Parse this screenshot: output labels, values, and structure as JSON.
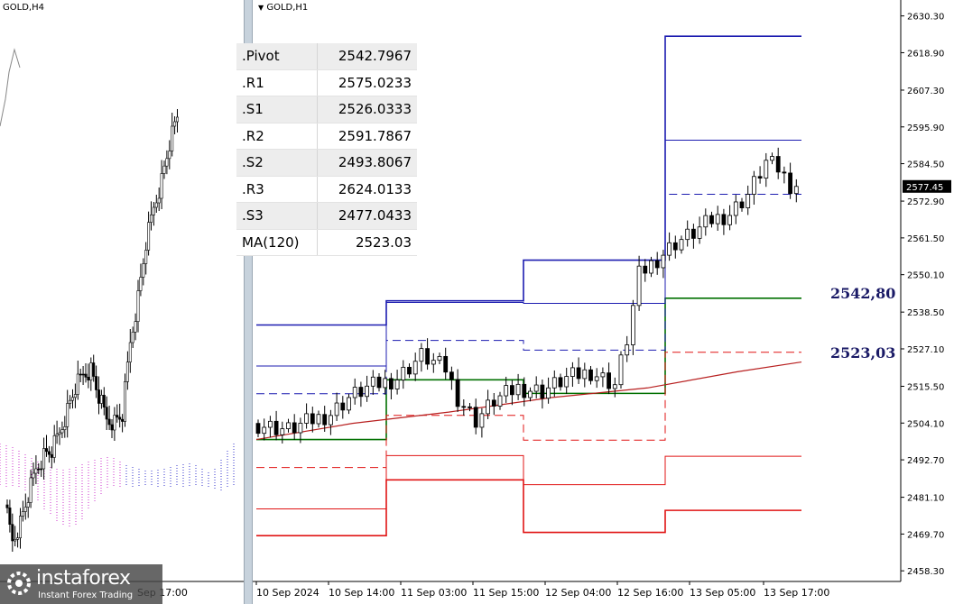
{
  "left_chart": {
    "title": "GOLD,H4",
    "time_label": "Sep 17:00"
  },
  "right_chart": {
    "title": "GOLD,H1",
    "price_tag": "2577.45"
  },
  "pivot_table": {
    "rows": [
      {
        "label": ".Pivot",
        "value": "2542.7967"
      },
      {
        "label": ".R1",
        "value": "2575.0233"
      },
      {
        "label": ".S1",
        "value": "2526.0333"
      },
      {
        "label": ".R2",
        "value": "2591.7867"
      },
      {
        "label": ".S2",
        "value": "2493.8067"
      },
      {
        "label": ".R3",
        "value": "2624.0133"
      },
      {
        "label": ".S3",
        "value": "2477.0433"
      },
      {
        "label": "MA(120)",
        "value": "2523.03"
      }
    ]
  },
  "annotations": {
    "pivot_level": "2542,80",
    "ma_level": "2523,03"
  },
  "logo": {
    "name": "instaforex",
    "tagline": "Instant Forex Trading"
  },
  "colors": {
    "pivot": "#007000",
    "resistance": "#1c1cb0",
    "support": "#e01414",
    "ma": "#b82020",
    "candle": "#000000"
  },
  "chart_data": [
    {
      "type": "line",
      "title": "GOLD,H4",
      "note": "candlestick with Ichimoku cloud",
      "x_tick_labels": [
        "Sep 17:00"
      ],
      "series": []
    },
    {
      "type": "line",
      "title": "GOLD,H1",
      "y_ticks": [
        2630.3,
        2618.9,
        2607.3,
        2595.9,
        2584.5,
        2572.9,
        2561.5,
        2550.1,
        2538.5,
        2527.1,
        2515.5,
        2504.1,
        2492.7,
        2481.1,
        2469.7,
        2458.3
      ],
      "ylim": [
        2455.0,
        2633.0
      ],
      "x_tick_labels": [
        "10 Sep 2024",
        "10 Sep 14:00",
        "11 Sep 03:00",
        "11 Sep 15:00",
        "12 Sep 04:00",
        "12 Sep 16:00",
        "13 Sep 05:00",
        "13 Sep 17:00"
      ],
      "current_price": 2577.45,
      "levels": [
        {
          "period": 1,
          "pivot": 2499.0,
          "r1": 2513.2,
          "s1": 2490.3,
          "r2": 2521.8,
          "s2": 2477.5,
          "r3": 2534.5,
          "s3": 2469.2
        },
        {
          "period": 2,
          "pivot": 2517.5,
          "r1": 2529.7,
          "s1": 2506.5,
          "r2": 2541.5,
          "s2": 2494.0,
          "r3": 2542.0,
          "s3": 2486.5
        },
        {
          "period": 3,
          "pivot": 2513.3,
          "r1": 2526.7,
          "s1": 2498.8,
          "r2": 2541.2,
          "s2": 2485.0,
          "r3": 2554.6,
          "s3": 2470.2
        },
        {
          "period": 4,
          "pivot": 2542.7967,
          "r1": 2575.0233,
          "s1": 2526.0333,
          "r2": 2591.7867,
          "s2": 2493.8067,
          "r3": 2624.0133,
          "s3": 2477.0433
        }
      ],
      "ma120": {
        "name": "MA(120)",
        "points": [
          [
            0,
            2499.0
          ],
          [
            15,
            2504.0
          ],
          [
            30,
            2507.5
          ],
          [
            46,
            2512.0
          ],
          [
            61,
            2515.0
          ],
          [
            75,
            2520.0
          ],
          [
            85,
            2523.03
          ]
        ]
      }
    }
  ]
}
